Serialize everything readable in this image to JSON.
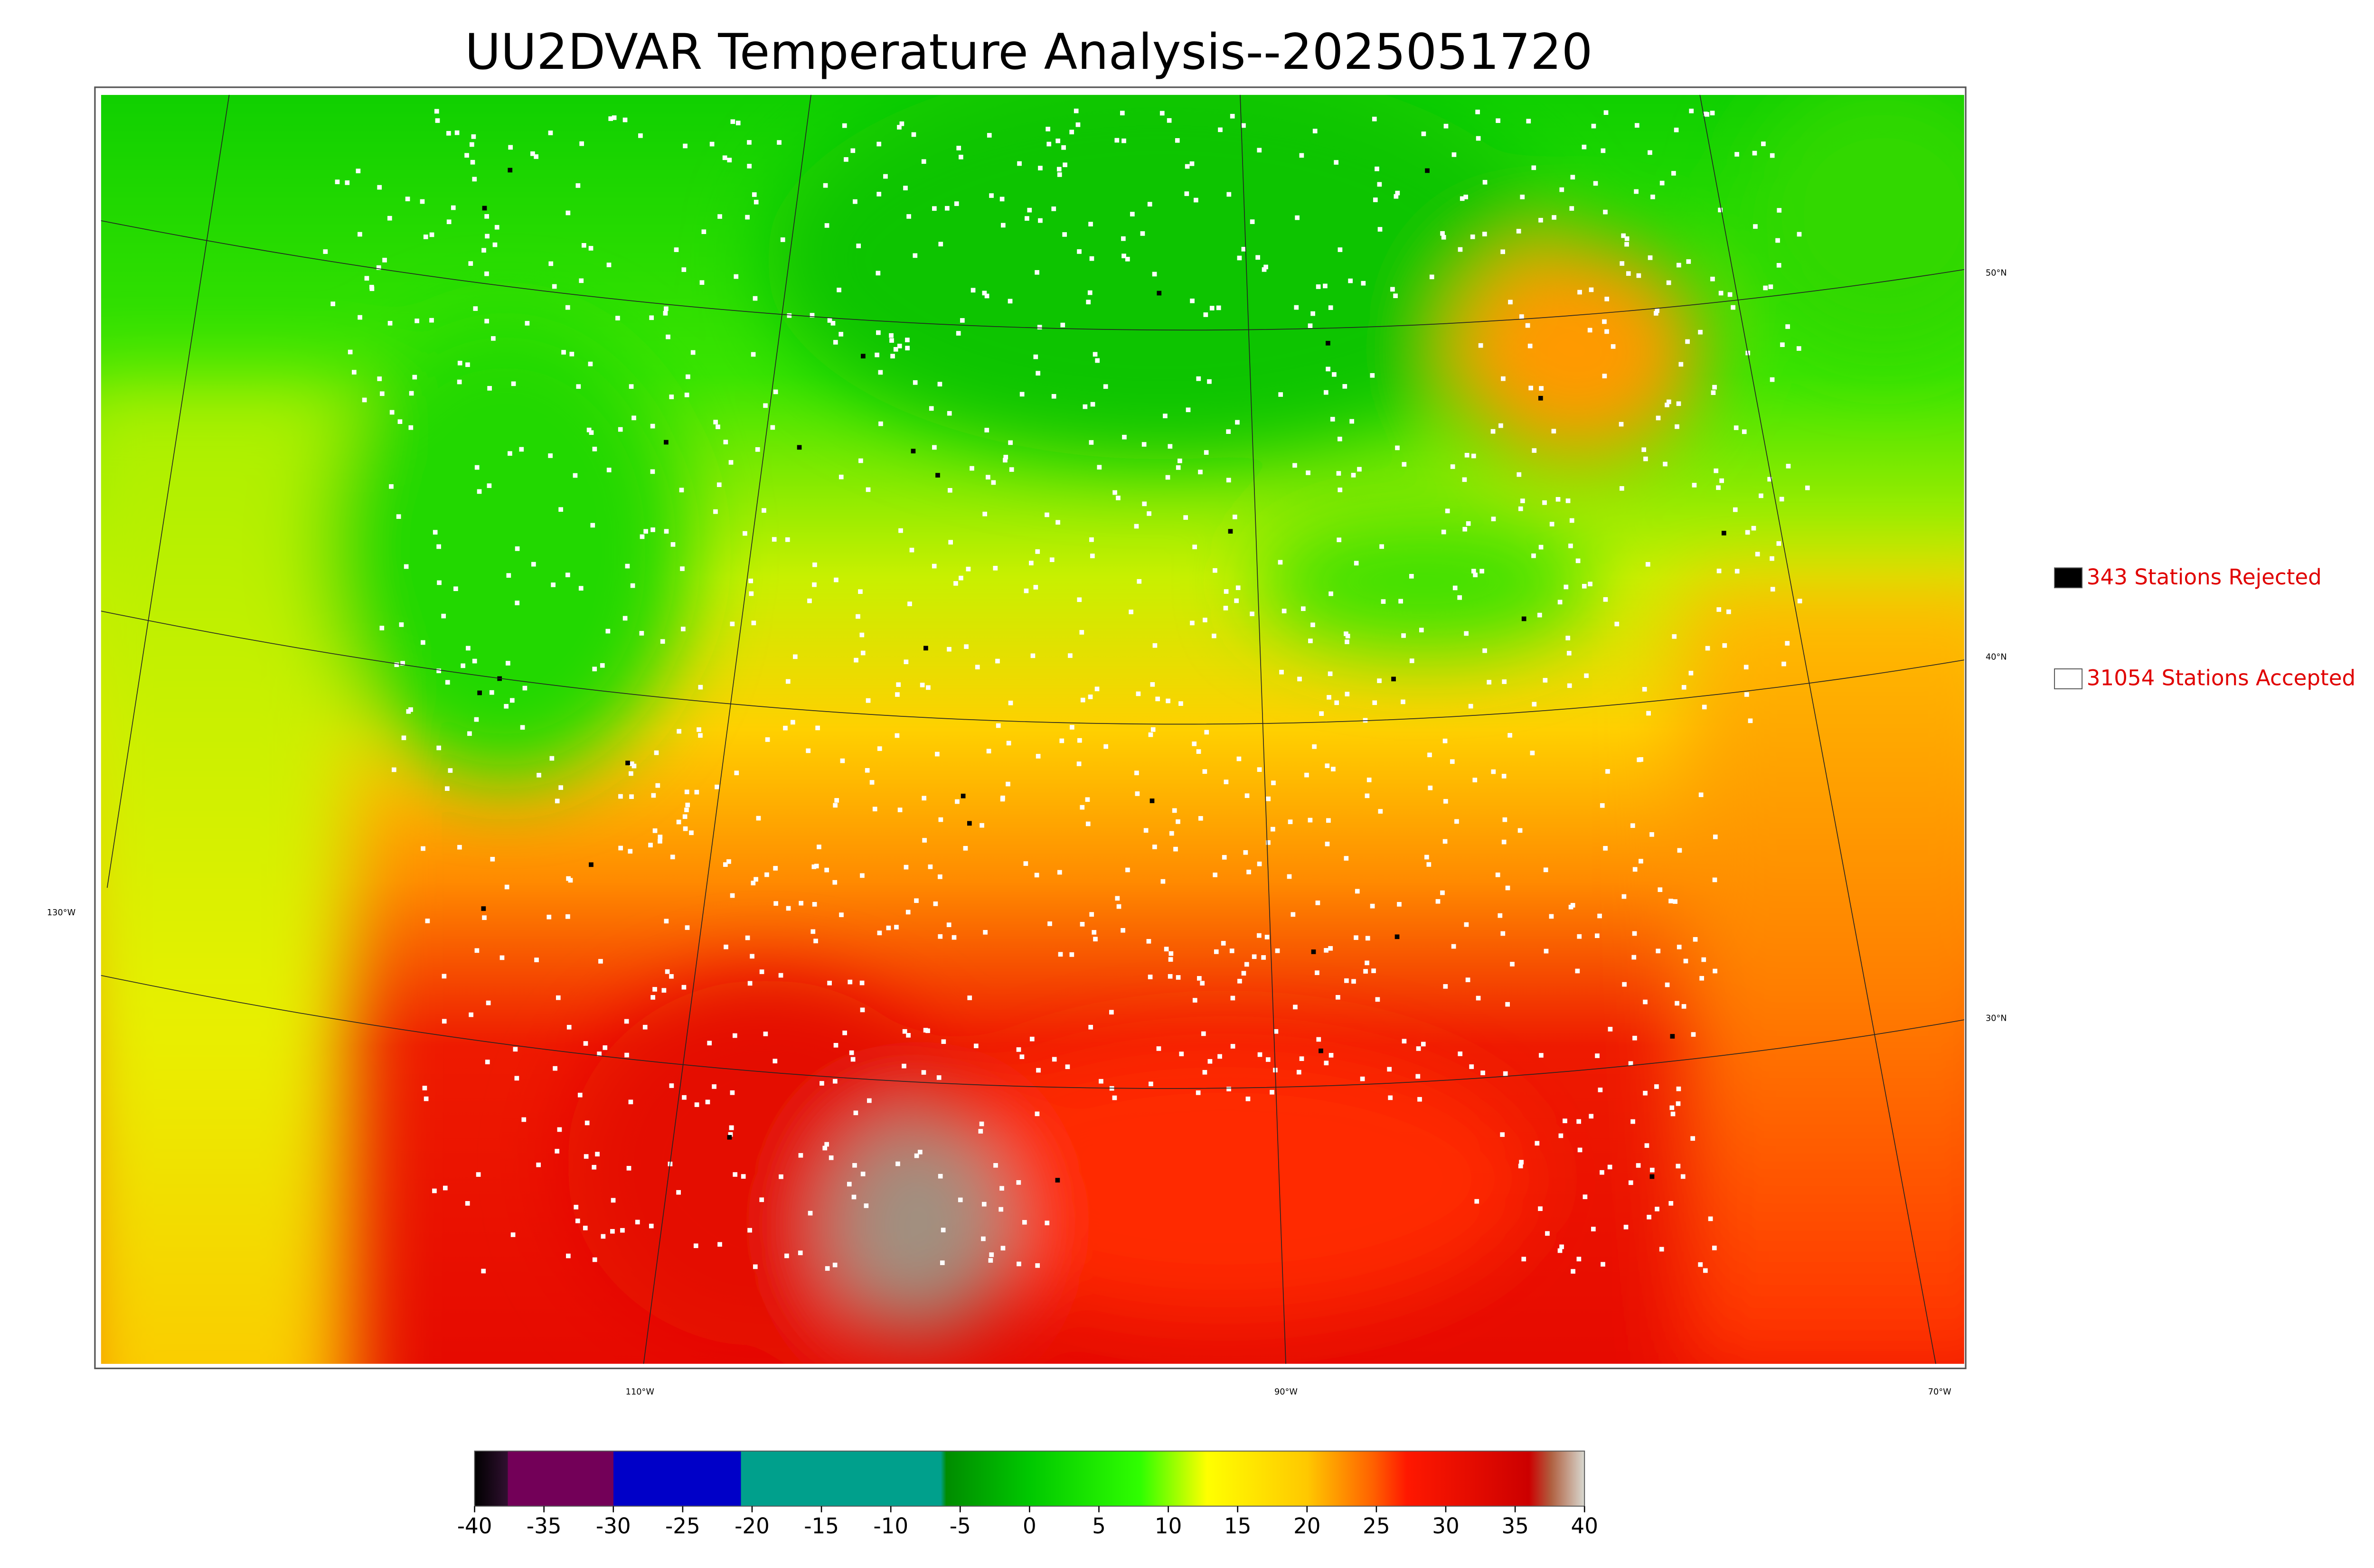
{
  "title": "UU2DVAR Temperature Analysis--2025051720",
  "legend": [
    {
      "label": "343 Stations Rejected",
      "color": "#000000"
    },
    {
      "label": "31054 Stations Accepted",
      "color": "#ffffff"
    }
  ],
  "graticule": {
    "latitudes": [
      "50°N",
      "40°N",
      "30°N"
    ],
    "longitudes": [
      "130°W",
      "110°W",
      "90°W",
      "70°W"
    ]
  },
  "colorbar": {
    "lim": [
      -40,
      40
    ],
    "ticks": [
      -40,
      -35,
      -30,
      -25,
      -20,
      -15,
      -10,
      -5,
      0,
      5,
      10,
      15,
      20,
      25,
      30,
      35,
      40
    ]
  }
}
